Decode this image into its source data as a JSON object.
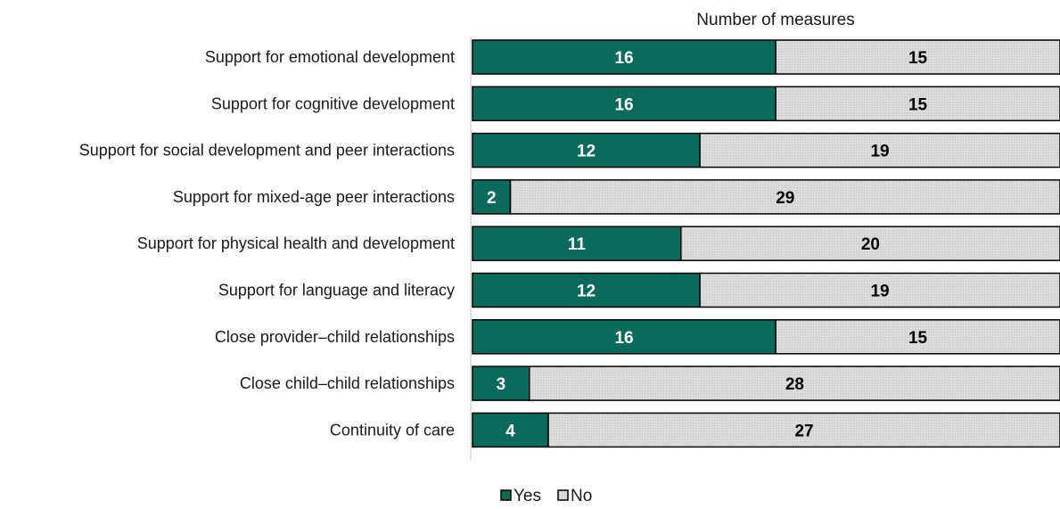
{
  "chart_data": {
    "type": "bar",
    "orientation": "horizontal",
    "stacked": true,
    "title": "Number of measures",
    "categories": [
      "Support for emotional development",
      "Support for cognitive development",
      "Support for social development and peer interactions",
      "Support for mixed-age peer interactions",
      "Support for physical health and development",
      "Support for language and literacy",
      "Close provider–child relationships",
      "Close child–child relationships",
      "Continuity of care"
    ],
    "series": [
      {
        "name": "Yes",
        "color": "#0b6b5a",
        "label_color": "#ffffff",
        "values": [
          16,
          16,
          12,
          2,
          11,
          12,
          16,
          3,
          4
        ]
      },
      {
        "name": "No",
        "color": "#d9d9d9",
        "label_color": "#000000",
        "values": [
          15,
          15,
          19,
          29,
          20,
          19,
          15,
          28,
          27
        ]
      }
    ],
    "xlim": [
      0,
      31
    ],
    "grid": false,
    "legend_position": "bottom"
  }
}
